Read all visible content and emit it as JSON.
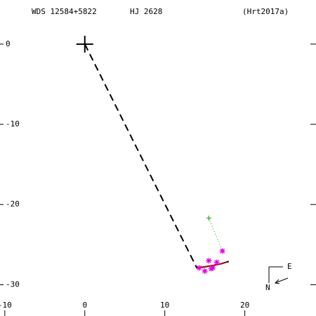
{
  "chart_data": {
    "type": "scatter",
    "title": "WDS 12584+5822",
    "subtitle": "HJ 2628",
    "reference": "(Hrt2017a)",
    "xlim": [
      -10.6,
      28.9
    ],
    "ylim": [
      -33.9,
      5.5
    ],
    "xticks": [
      -10,
      0,
      10,
      20
    ],
    "yticks": [
      0,
      -10,
      -20,
      -30
    ],
    "primary": {
      "x": 0,
      "y": 0,
      "color": "#000000"
    },
    "node_line": {
      "x": [
        0,
        14
      ],
      "y": [
        0,
        -27.9
      ],
      "color": "#000000"
    },
    "orbit": {
      "x": [
        13.9,
        14.8,
        16,
        17,
        18
      ],
      "y": [
        -27.9,
        -27.8,
        -27.6,
        -27.4,
        -27.1
      ],
      "color": "#000000"
    },
    "orbit_fit": {
      "x": [
        14.2,
        15.5,
        16.8,
        17.8
      ],
      "y": [
        -27.85,
        -27.65,
        -27.45,
        -27.2
      ],
      "color": "#ff0000"
    },
    "observations": {
      "color": "#e000e0",
      "x": [
        14.3,
        15,
        15.5,
        16,
        16.5,
        17.2,
        15.8
      ],
      "y": [
        -27.9,
        -28.3,
        -27,
        -27.9,
        -27.2,
        -25.8,
        -28
      ]
    },
    "first_measure": {
      "color": "#00a000",
      "x": [
        15.5,
        17.2
      ],
      "y": [
        -21.7,
        -25.8
      ]
    },
    "compass": {
      "east": "E",
      "north": "N"
    }
  }
}
